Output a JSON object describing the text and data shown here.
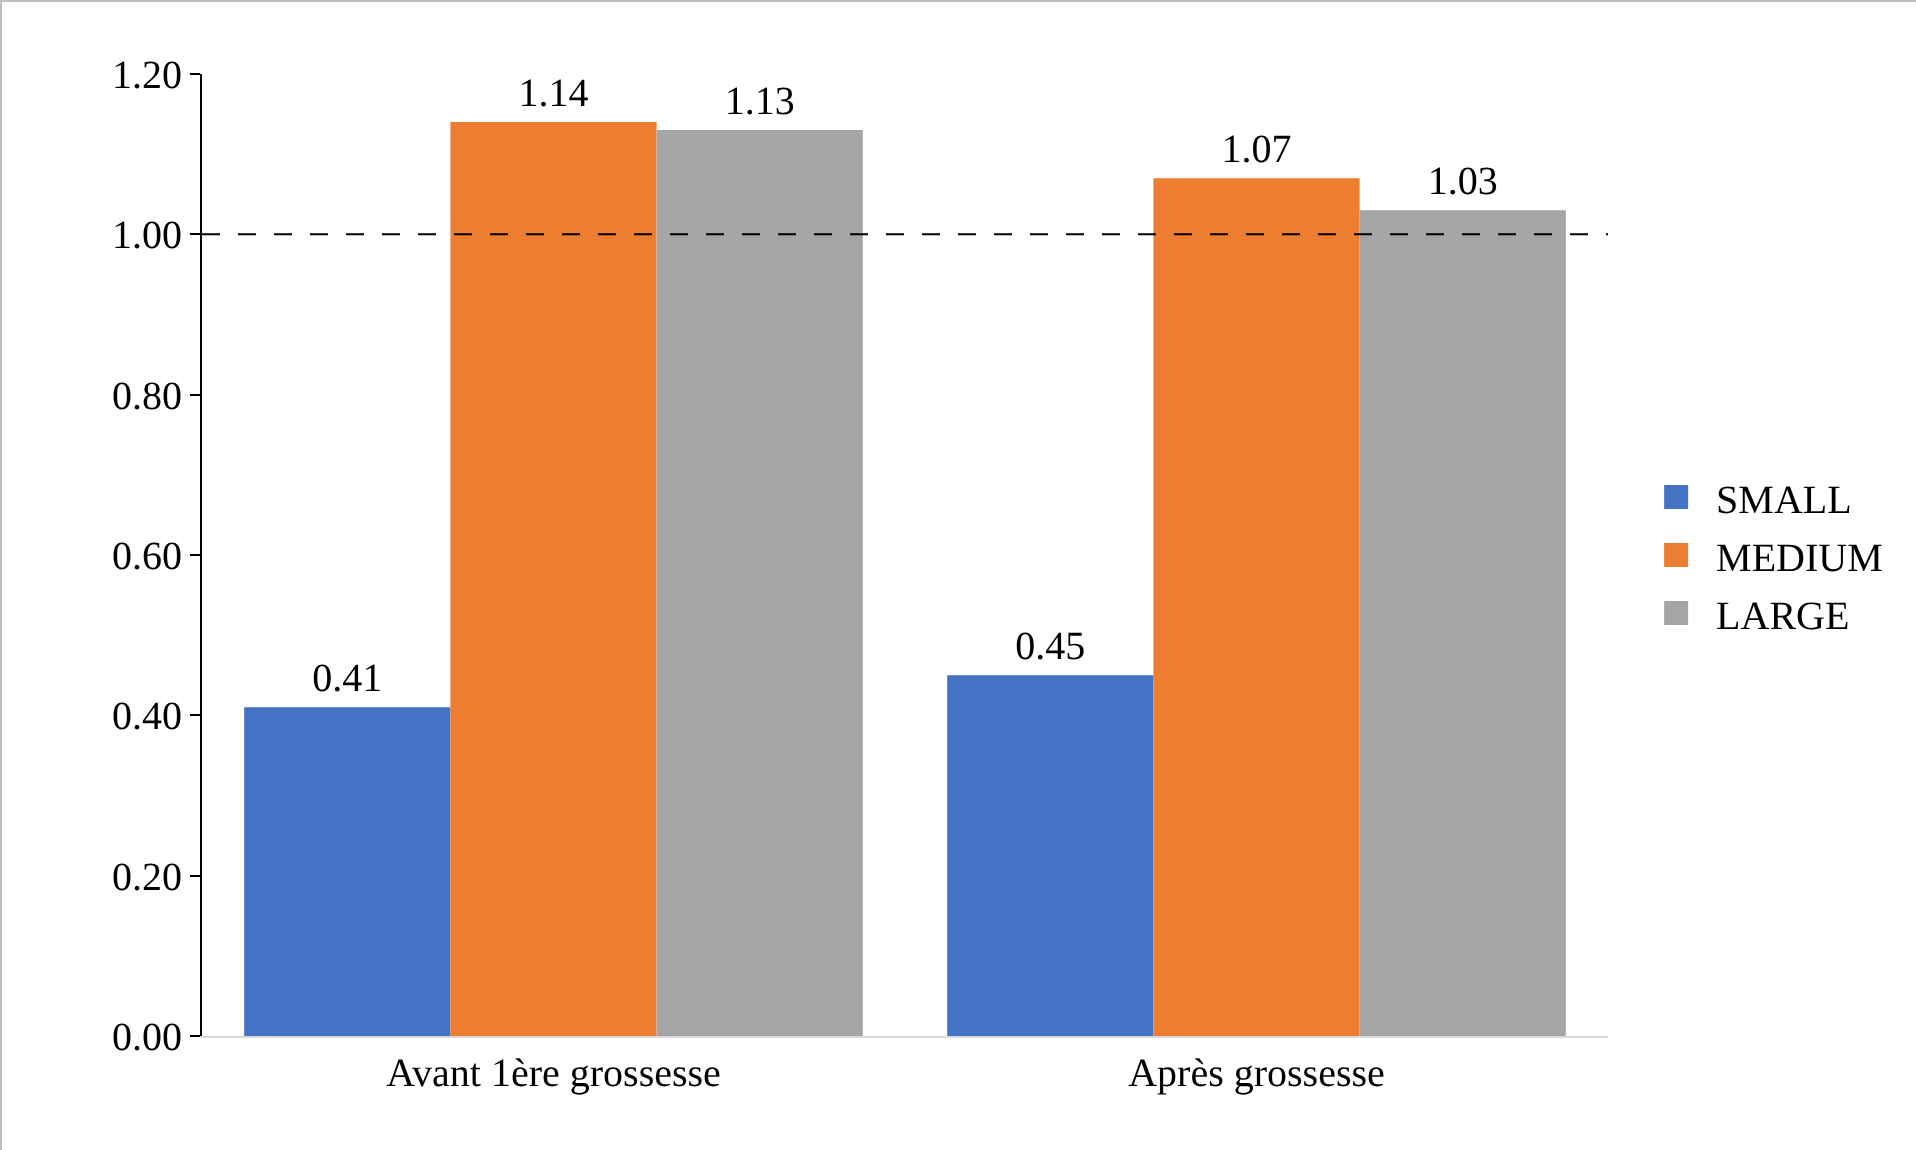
{
  "chart_data": {
    "type": "bar",
    "categories": [
      "Avant 1ère grossesse",
      "Après grossesse"
    ],
    "series": [
      {
        "name": "SMALL",
        "color": "#4472c4",
        "values": [
          0.41,
          0.45
        ]
      },
      {
        "name": "MEDIUM",
        "color": "#ed7d31",
        "values": [
          1.14,
          1.07
        ]
      },
      {
        "name": "LARGE",
        "color": "#a5a5a5",
        "values": [
          1.13,
          1.03
        ]
      }
    ],
    "ylim": [
      0,
      1.2
    ],
    "yticks": [
      {
        "value": 0,
        "label": "0.00"
      },
      {
        "value": 0.2,
        "label": "0.20"
      },
      {
        "value": 0.4,
        "label": "0.40"
      },
      {
        "value": 0.6,
        "label": "0.60"
      },
      {
        "value": 0.8,
        "label": "0.80"
      },
      {
        "value": 1,
        "label": "1.00"
      },
      {
        "value": 1.2,
        "label": "1.20"
      }
    ],
    "ref_lines": [
      {
        "axis": "y",
        "value": 1,
        "color": "#000000",
        "line_style": "dashed"
      }
    ],
    "data_labels": true,
    "legend": "right",
    "grid": false
  }
}
